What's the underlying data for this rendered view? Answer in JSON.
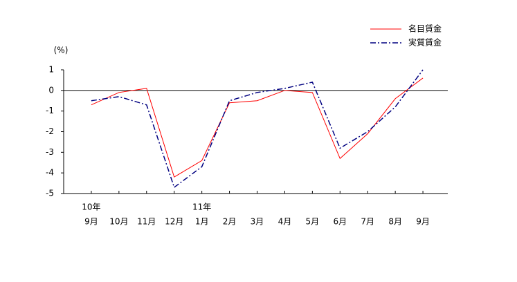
{
  "chart_data": {
    "type": "line",
    "y_unit_label": "(%)",
    "categories": [
      "9月",
      "10月",
      "11月",
      "12月",
      "1月",
      "2月",
      "3月",
      "4月",
      "5月",
      "6月",
      "7月",
      "8月",
      "9月"
    ],
    "year_labels": [
      "10年",
      null,
      null,
      null,
      "11年",
      null,
      null,
      null,
      null,
      null,
      null,
      null,
      null
    ],
    "series": [
      {
        "name": "名目賃金",
        "color": "#ff0000",
        "dash": "none",
        "values": [
          -0.7,
          -0.1,
          0.1,
          -4.2,
          -3.4,
          -0.6,
          -0.5,
          0.0,
          -0.1,
          -3.3,
          -2.1,
          -0.4,
          0.6
        ]
      },
      {
        "name": "実質賃金",
        "color": "#000080",
        "dash": "8 3 2 3",
        "values": [
          -0.5,
          -0.3,
          -0.7,
          -4.7,
          -3.7,
          -0.5,
          -0.1,
          0.1,
          0.4,
          -2.8,
          -2.0,
          -0.8,
          1.0
        ]
      }
    ],
    "ylim": [
      -5,
      1
    ],
    "yticks": [
      -5,
      -4,
      -3,
      -2,
      -1,
      0,
      1
    ]
  }
}
